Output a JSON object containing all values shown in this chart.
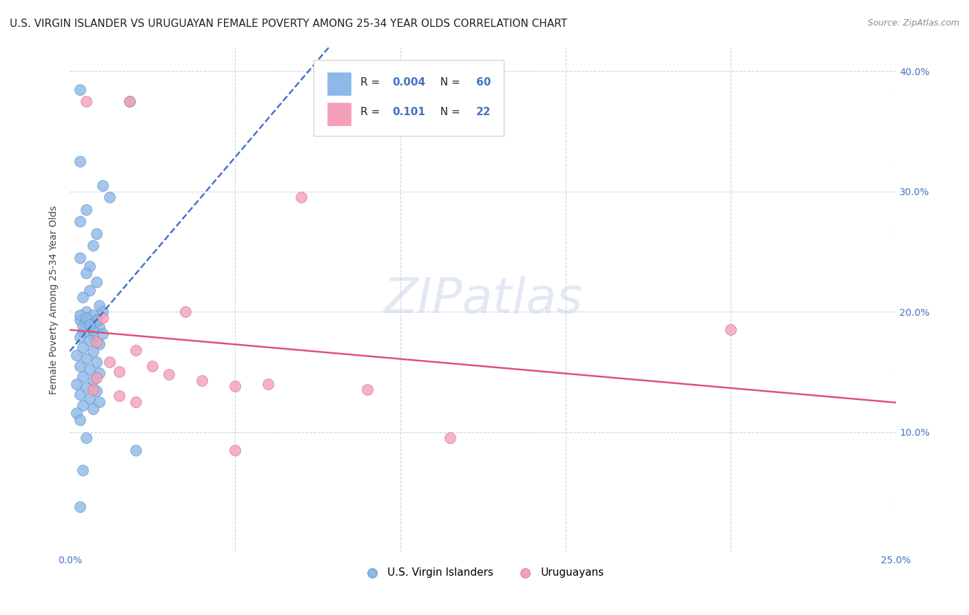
{
  "title": "U.S. VIRGIN ISLANDER VS URUGUAYAN FEMALE POVERTY AMONG 25-34 YEAR OLDS CORRELATION CHART",
  "source": "Source: ZipAtlas.com",
  "ylabel": "Female Poverty Among 25-34 Year Olds",
  "xlim": [
    0.0,
    0.25
  ],
  "ylim": [
    0.0,
    0.42
  ],
  "watermark": "ZIPatlas",
  "us_vi_points": [
    [
      0.003,
      0.385
    ],
    [
      0.018,
      0.375
    ],
    [
      0.003,
      0.325
    ],
    [
      0.003,
      0.275
    ],
    [
      0.01,
      0.305
    ],
    [
      0.012,
      0.295
    ],
    [
      0.005,
      0.285
    ],
    [
      0.008,
      0.265
    ],
    [
      0.007,
      0.255
    ],
    [
      0.003,
      0.245
    ],
    [
      0.006,
      0.238
    ],
    [
      0.005,
      0.232
    ],
    [
      0.008,
      0.225
    ],
    [
      0.006,
      0.218
    ],
    [
      0.004,
      0.212
    ],
    [
      0.009,
      0.205
    ],
    [
      0.005,
      0.2
    ],
    [
      0.007,
      0.197
    ],
    [
      0.003,
      0.193
    ],
    [
      0.006,
      0.19
    ],
    [
      0.009,
      0.187
    ],
    [
      0.004,
      0.183
    ],
    [
      0.007,
      0.18
    ],
    [
      0.003,
      0.197
    ],
    [
      0.008,
      0.194
    ],
    [
      0.005,
      0.191
    ],
    [
      0.004,
      0.188
    ],
    [
      0.007,
      0.185
    ],
    [
      0.01,
      0.182
    ],
    [
      0.003,
      0.179
    ],
    [
      0.006,
      0.176
    ],
    [
      0.009,
      0.173
    ],
    [
      0.004,
      0.17
    ],
    [
      0.007,
      0.167
    ],
    [
      0.002,
      0.164
    ],
    [
      0.005,
      0.161
    ],
    [
      0.008,
      0.158
    ],
    [
      0.003,
      0.155
    ],
    [
      0.006,
      0.152
    ],
    [
      0.009,
      0.149
    ],
    [
      0.004,
      0.146
    ],
    [
      0.007,
      0.143
    ],
    [
      0.002,
      0.14
    ],
    [
      0.005,
      0.137
    ],
    [
      0.008,
      0.134
    ],
    [
      0.003,
      0.131
    ],
    [
      0.006,
      0.128
    ],
    [
      0.009,
      0.125
    ],
    [
      0.004,
      0.122
    ],
    [
      0.007,
      0.119
    ],
    [
      0.002,
      0.116
    ],
    [
      0.005,
      0.095
    ],
    [
      0.003,
      0.11
    ],
    [
      0.02,
      0.085
    ],
    [
      0.004,
      0.068
    ],
    [
      0.003,
      0.038
    ],
    [
      0.01,
      0.2
    ],
    [
      0.005,
      0.195
    ],
    [
      0.008,
      0.192
    ],
    [
      0.006,
      0.189
    ]
  ],
  "uy_points": [
    [
      0.005,
      0.375
    ],
    [
      0.018,
      0.375
    ],
    [
      0.07,
      0.295
    ],
    [
      0.01,
      0.195
    ],
    [
      0.035,
      0.2
    ],
    [
      0.008,
      0.175
    ],
    [
      0.02,
      0.168
    ],
    [
      0.012,
      0.158
    ],
    [
      0.025,
      0.155
    ],
    [
      0.015,
      0.15
    ],
    [
      0.03,
      0.148
    ],
    [
      0.008,
      0.145
    ],
    [
      0.04,
      0.143
    ],
    [
      0.06,
      0.14
    ],
    [
      0.05,
      0.138
    ],
    [
      0.007,
      0.135
    ],
    [
      0.09,
      0.135
    ],
    [
      0.015,
      0.13
    ],
    [
      0.02,
      0.125
    ],
    [
      0.2,
      0.185
    ],
    [
      0.115,
      0.095
    ],
    [
      0.05,
      0.085
    ]
  ],
  "blue_line_color": "#4472c4",
  "pink_line_color": "#e05070",
  "scatter_blue": "#8db8e8",
  "scatter_blue_edge": "#6090c0",
  "scatter_pink": "#f4a0b8",
  "scatter_pink_edge": "#d07090",
  "background_color": "#ffffff",
  "grid_color": "#c8d4e8",
  "title_fontsize": 11,
  "source_fontsize": 9,
  "axis_label_fontsize": 10,
  "tick_fontsize": 10,
  "tick_color": "#4472c4",
  "legend_R_color": "#4472c4",
  "legend_text_color": "#222222"
}
